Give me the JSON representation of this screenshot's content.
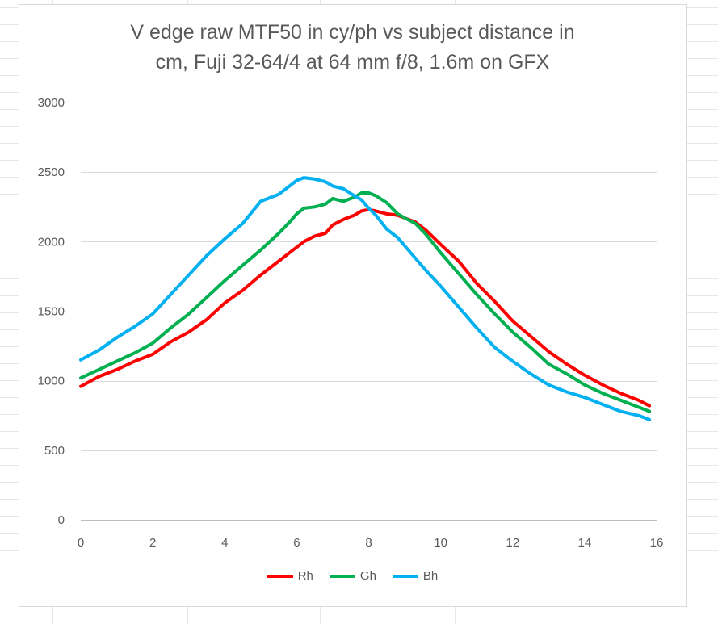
{
  "chart_data": {
    "type": "line",
    "title_line1": "V edge raw MTF50 in cy/ph vs subject distance in",
    "title_line2": "cm, Fuji 32-64/4 at 64 mm f/8, 1.6m on GFX",
    "xlabel": "",
    "ylabel": "",
    "xlim": [
      0,
      16
    ],
    "ylim": [
      0,
      3000
    ],
    "xticks": [
      0,
      2,
      4,
      6,
      8,
      10,
      12,
      14,
      16
    ],
    "yticks": [
      0,
      500,
      1000,
      1500,
      2000,
      2500,
      3000
    ],
    "grid": "horizontal",
    "legend_position": "bottom",
    "x": [
      0,
      0.5,
      1,
      1.5,
      2,
      2.5,
      3,
      3.5,
      4,
      4.5,
      5,
      5.5,
      5.8,
      6,
      6.2,
      6.5,
      6.8,
      7,
      7.3,
      7.6,
      7.8,
      8,
      8.2,
      8.5,
      8.8,
      9,
      9.3,
      9.6,
      10,
      10.5,
      11,
      11.5,
      12,
      12.5,
      13,
      13.5,
      14,
      14.5,
      15,
      15.5,
      15.8
    ],
    "series": [
      {
        "name": "Rh",
        "color": "#ff0000",
        "values": [
          960,
          1030,
          1080,
          1140,
          1190,
          1280,
          1350,
          1440,
          1560,
          1650,
          1760,
          1860,
          1920,
          1960,
          2000,
          2040,
          2060,
          2120,
          2160,
          2190,
          2220,
          2230,
          2220,
          2200,
          2190,
          2170,
          2140,
          2080,
          1980,
          1860,
          1700,
          1570,
          1430,
          1320,
          1210,
          1120,
          1040,
          970,
          910,
          860,
          820
        ]
      },
      {
        "name": "Gh",
        "color": "#00b050",
        "values": [
          1020,
          1080,
          1140,
          1200,
          1270,
          1380,
          1480,
          1600,
          1720,
          1830,
          1940,
          2060,
          2140,
          2200,
          2240,
          2250,
          2270,
          2310,
          2290,
          2320,
          2350,
          2350,
          2330,
          2280,
          2200,
          2170,
          2130,
          2050,
          1920,
          1770,
          1620,
          1480,
          1350,
          1240,
          1120,
          1050,
          970,
          910,
          860,
          810,
          780
        ]
      },
      {
        "name": "Bh",
        "color": "#00b0f0",
        "values": [
          1150,
          1220,
          1310,
          1390,
          1480,
          1620,
          1760,
          1900,
          2020,
          2130,
          2290,
          2340,
          2400,
          2440,
          2460,
          2450,
          2430,
          2400,
          2380,
          2330,
          2300,
          2240,
          2190,
          2090,
          2030,
          1970,
          1880,
          1790,
          1680,
          1530,
          1380,
          1240,
          1140,
          1050,
          970,
          920,
          880,
          830,
          780,
          750,
          720
        ]
      }
    ]
  }
}
